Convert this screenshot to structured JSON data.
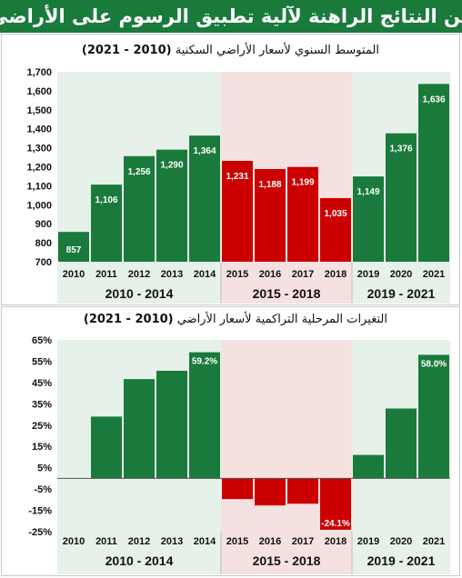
{
  "header": {
    "title": "من النتائج الراهنة لآلية تطبيق الرسوم على الأراضي"
  },
  "colors": {
    "green": "#1a7a3c",
    "red": "#cc0000",
    "band_green": "#e6f1ea",
    "band_red": "#f6e1e1",
    "banner": "#1a7a3c"
  },
  "chart_data": [
    {
      "type": "bar",
      "title": "المتوسط السنوي لأسعار الأراضي السكنية",
      "subtitle": "(2010 - 2021)",
      "categories": [
        "2010",
        "2011",
        "2012",
        "2013",
        "2014",
        "2015",
        "2016",
        "2017",
        "2018",
        "2019",
        "2020",
        "2021"
      ],
      "values": [
        857,
        1106,
        1256,
        1290,
        1364,
        1231,
        1188,
        1199,
        1035,
        1149,
        1376,
        1636
      ],
      "data_labels": [
        "857",
        "1,106",
        "1,256",
        "1,290",
        "1,364",
        "1,231",
        "1,188",
        "1,199",
        "1,035",
        "1,149",
        "1,376",
        "1,636"
      ],
      "bar_colors": [
        "green",
        "green",
        "green",
        "green",
        "green",
        "red",
        "red",
        "red",
        "red",
        "green",
        "green",
        "green"
      ],
      "ylim": [
        700,
        1700
      ],
      "yticks": [
        700,
        800,
        900,
        1000,
        1100,
        1200,
        1300,
        1400,
        1500,
        1600,
        1700
      ],
      "ytick_labels": [
        "700",
        "800",
        "900",
        "1,000",
        "1,100",
        "1,200",
        "1,300",
        "1,400",
        "1,500",
        "1,600",
        "1,700"
      ],
      "groups": [
        {
          "label": "2010 - 2014",
          "from": 0,
          "to": 4,
          "band": "green"
        },
        {
          "label": "2015 - 2018",
          "from": 5,
          "to": 8,
          "band": "red"
        },
        {
          "label": "2019 - 2021",
          "from": 9,
          "to": 11,
          "band": "green"
        }
      ]
    },
    {
      "type": "bar",
      "title": "التغيرات المرحلية التراكمية لأسعار الأراضي",
      "subtitle": "(2010 - 2021)",
      "categories": [
        "2010",
        "2011",
        "2012",
        "2013",
        "2014",
        "2015",
        "2016",
        "2017",
        "2018",
        "2019",
        "2020",
        "2021"
      ],
      "values": [
        0,
        29,
        46.6,
        50.5,
        59.2,
        -9.7,
        -12.7,
        -11.9,
        -24.1,
        11,
        32.8,
        58
      ],
      "data_labels": [
        "",
        "",
        "",
        "",
        "59.2%",
        "",
        "",
        "",
        "-24.1%",
        "",
        "",
        "58.0%"
      ],
      "bar_colors": [
        "green",
        "green",
        "green",
        "green",
        "green",
        "red",
        "red",
        "red",
        "red",
        "green",
        "green",
        "green"
      ],
      "ylim": [
        -25,
        65
      ],
      "yticks": [
        -25,
        -15,
        -5,
        5,
        15,
        25,
        35,
        45,
        55,
        65
      ],
      "ytick_labels": [
        "-25%",
        "-15%",
        "-5%",
        "5%",
        "15%",
        "25%",
        "35%",
        "45%",
        "55%",
        "65%"
      ],
      "groups": [
        {
          "label": "2010 - 2014",
          "from": 0,
          "to": 4,
          "band": "green"
        },
        {
          "label": "2015 - 2018",
          "from": 5,
          "to": 8,
          "band": "red"
        },
        {
          "label": "2019 - 2021",
          "from": 9,
          "to": 11,
          "band": "green"
        }
      ]
    }
  ]
}
